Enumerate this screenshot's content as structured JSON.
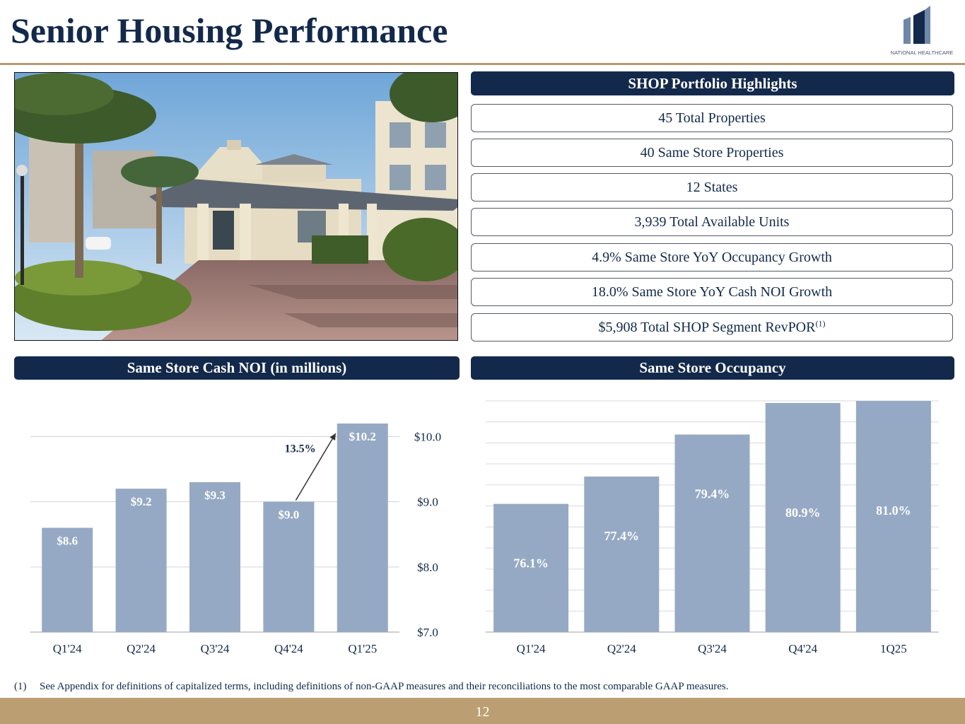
{
  "page": {
    "title": "Senior Housing Performance",
    "logo_text": "NATIONAL HEALTHCARE",
    "page_number": "12",
    "footnote_number": "(1)",
    "footnote_text": "See Appendix for definitions of capitalized terms, including definitions of non-GAAP measures and their reconciliations to the most comparable GAAP measures."
  },
  "highlights": {
    "header": "SHOP Portfolio Highlights",
    "items": [
      {
        "text": "45 Total Properties"
      },
      {
        "text": "40 Same Store Properties"
      },
      {
        "text": "12 States"
      },
      {
        "text": "3,939 Total Available Units"
      },
      {
        "text": "4.9% Same Store YoY Occupancy Growth"
      },
      {
        "text": "18.0% Same Store YoY Cash NOI Growth"
      },
      {
        "text": "$5,908 Total SHOP Segment RevPOR",
        "sup": "(1)"
      }
    ]
  },
  "colors": {
    "navy": "#13294b",
    "bar": "#96a9c4",
    "gold": "#b79b72"
  },
  "chart_data": [
    {
      "type": "bar",
      "title": "Same Store Cash NOI (in millions)",
      "categories": [
        "Q1'24",
        "Q2'24",
        "Q3'24",
        "Q4'24",
        "Q1'25"
      ],
      "values": [
        8.6,
        9.2,
        9.3,
        9.0,
        10.2
      ],
      "value_labels": [
        "$8.6",
        "$9.2",
        "$9.3",
        "$9.0",
        "$10.2"
      ],
      "ylim": [
        7.0,
        10.2
      ],
      "yticks": [
        7.0,
        8.0,
        9.0,
        10.0
      ],
      "ytick_labels": [
        "$7.0",
        "$8.0",
        "$9.0",
        "$10.0"
      ],
      "y_axis_position": "right",
      "grid": true,
      "annotation": {
        "text": "13.5%",
        "from_category": "Q4'24",
        "to_category": "Q1'25"
      }
    },
    {
      "type": "bar",
      "title": "Same Store Occupancy",
      "categories": [
        "Q1'24",
        "Q2'24",
        "Q3'24",
        "Q4'24",
        "1Q25"
      ],
      "values": [
        76.1,
        77.4,
        79.4,
        80.9,
        81.0
      ],
      "value_labels": [
        "76.1%",
        "77.4%",
        "79.4%",
        "80.9%",
        "81.0%"
      ],
      "ylim": [
        70.0,
        81.0
      ],
      "grid": true
    }
  ]
}
